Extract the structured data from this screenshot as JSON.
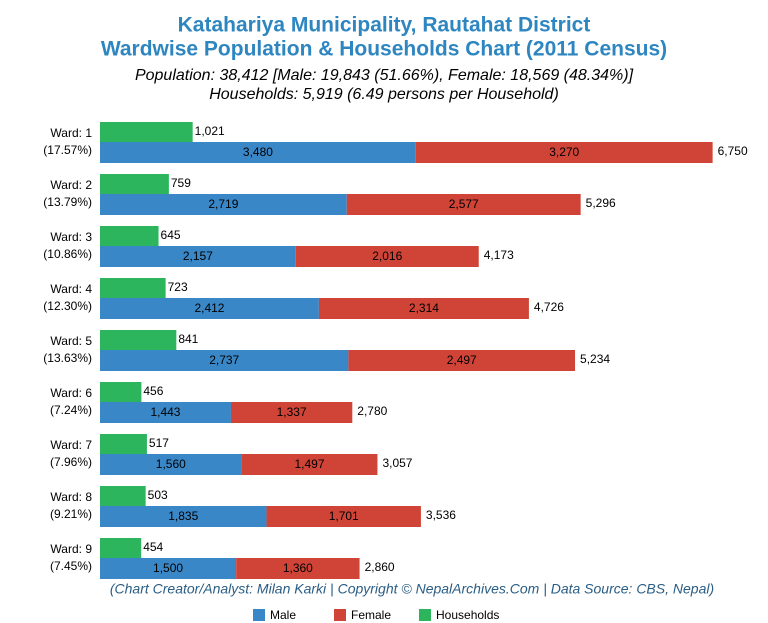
{
  "chart_data": {
    "type": "bar",
    "orientation": "horizontal",
    "title": "Katahariya Municipality, Rautahat District",
    "title_line2": "Wardwise Population & Households Chart (2011 Census)",
    "subtitle": "Population: 38,412 [Male: 19,843 (51.66%), Female: 18,569 (48.34%)]",
    "subtitle_line2": "Households: 5,919 (6.49 persons per Household)",
    "footer": "(Chart Creator/Analyst: Milan Karki | Copyright © NepalArchives.Com | Data Source: CBS, Nepal)",
    "categories": [
      "Ward: 1",
      "Ward: 2",
      "Ward: 3",
      "Ward: 4",
      "Ward: 5",
      "Ward: 6",
      "Ward: 7",
      "Ward: 8",
      "Ward: 9"
    ],
    "category_sublabels": [
      "(17.57%)",
      "(13.79%)",
      "(10.86%)",
      "(12.30%)",
      "(13.63%)",
      "(7.24%)",
      "(7.96%)",
      "(9.21%)",
      "(7.45%)"
    ],
    "series": [
      {
        "name": "Male",
        "color": "#3a87c8",
        "values": [
          3480,
          2719,
          2157,
          2412,
          2737,
          1443,
          1560,
          1835,
          1500
        ],
        "value_labels": [
          "3,480",
          "2,719",
          "2,157",
          "2,412",
          "2,737",
          "1,443",
          "1,560",
          "1,835",
          "1,500"
        ]
      },
      {
        "name": "Female",
        "color": "#d04437",
        "values": [
          3270,
          2577,
          2016,
          2314,
          2497,
          1337,
          1497,
          1701,
          1360
        ],
        "value_labels": [
          "3,270",
          "2,577",
          "2,016",
          "2,314",
          "2,497",
          "1,337",
          "1,497",
          "1,701",
          "1,360"
        ]
      },
      {
        "name": "Households",
        "color": "#2db55d",
        "values": [
          1021,
          759,
          645,
          723,
          841,
          456,
          517,
          503,
          454
        ],
        "value_labels": [
          "1,021",
          "759",
          "645",
          "723",
          "841",
          "456",
          "517",
          "503",
          "454"
        ]
      }
    ],
    "totals": [
      6750,
      5296,
      4173,
      4726,
      5234,
      2780,
      3057,
      3536,
      2860
    ],
    "total_labels": [
      "6,750",
      "5,296",
      "4,173",
      "4,726",
      "5,234",
      "2,780",
      "3,057",
      "3,536",
      "2,860"
    ],
    "xlim": [
      0,
      7250
    ]
  }
}
